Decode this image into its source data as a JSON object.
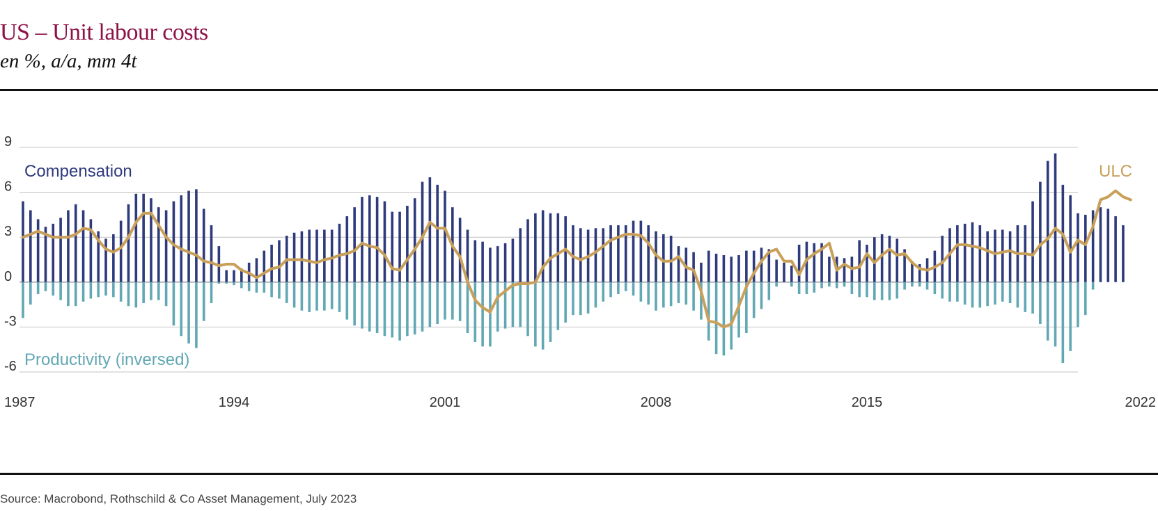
{
  "title": "US – Unit labour costs",
  "subtitle": "en %, a/a, mm 4t",
  "source": "Source: Macrobond, Rothschild & Co Asset Management, July 2023",
  "chart_data": {
    "type": "bar",
    "x_start": 1987,
    "x_step": 0.25,
    "x_ticks": [
      "1987",
      "1994",
      "2001",
      "2008",
      "2015",
      "2022"
    ],
    "ylim": [
      -6,
      9
    ],
    "y_ticks": [
      "9",
      "6",
      "3",
      "0",
      "-3",
      "-6"
    ],
    "grid": true,
    "colors": {
      "compensation": "#2e3a7c",
      "productivity": "#62a8b4",
      "ulc": "#c9a05a"
    },
    "series": [
      {
        "name": "Compensation",
        "type": "bar",
        "values": [
          5.4,
          4.8,
          4.2,
          3.7,
          3.9,
          4.3,
          4.8,
          5.2,
          4.8,
          4.2,
          3.4,
          2.9,
          3.2,
          4.1,
          5.2,
          5.9,
          5.9,
          5.6,
          5.0,
          4.8,
          5.4,
          5.8,
          6.1,
          6.2,
          4.9,
          3.8,
          2.4,
          0.8,
          0.8,
          0.9,
          1.3,
          1.6,
          2.1,
          2.5,
          2.8,
          3.1,
          3.3,
          3.4,
          3.5,
          3.5,
          3.5,
          3.5,
          3.9,
          4.4,
          5.0,
          5.7,
          5.8,
          5.7,
          5.4,
          4.7,
          4.7,
          5.1,
          5.6,
          6.7,
          7.0,
          6.5,
          6.1,
          5.0,
          4.3,
          3.5,
          2.8,
          2.7,
          2.3,
          2.4,
          2.6,
          2.9,
          3.6,
          4.2,
          4.6,
          4.8,
          4.6,
          4.6,
          4.4,
          3.8,
          3.6,
          3.5,
          3.6,
          3.6,
          3.8,
          3.8,
          3.8,
          4.1,
          4.1,
          3.8,
          3.4,
          3.2,
          3.1,
          2.4,
          2.3,
          2.0,
          1.3,
          2.1,
          1.9,
          1.8,
          1.7,
          1.8,
          2.1,
          2.1,
          2.3,
          2.2,
          1.5,
          1.3,
          1.1,
          2.5,
          2.7,
          2.6,
          2.6,
          1.7,
          1.7,
          1.6,
          1.7,
          2.8,
          2.5,
          3.0,
          3.2,
          3.1,
          2.9,
          2.2,
          1.4,
          1.2,
          1.6,
          2.1,
          3.1,
          3.6,
          3.8,
          3.9,
          4.0,
          3.8,
          3.4,
          3.5,
          3.5,
          3.4,
          3.8,
          3.8,
          5.4,
          6.7,
          8.1,
          8.6,
          6.5,
          5.8,
          4.6,
          4.5,
          4.8,
          5.0,
          4.9,
          4.4,
          3.8
        ],
        "label": "Compensation"
      },
      {
        "name": "Productivity (inversed)",
        "type": "bar",
        "values": [
          -2.4,
          -1.5,
          -0.8,
          -0.6,
          -0.9,
          -1.2,
          -1.6,
          -1.6,
          -1.3,
          -1.1,
          -1.0,
          -0.9,
          -1.0,
          -1.3,
          -1.6,
          -1.7,
          -1.4,
          -1.2,
          -1.2,
          -1.6,
          -2.9,
          -3.6,
          -4.1,
          -4.4,
          -2.6,
          -1.4,
          -0.1,
          -0.1,
          -0.2,
          -0.4,
          -0.6,
          -0.7,
          -0.7,
          -1.0,
          -1.1,
          -1.4,
          -1.7,
          -1.9,
          -2.0,
          -1.9,
          -1.9,
          -1.8,
          -2.0,
          -2.5,
          -2.9,
          -3.1,
          -3.3,
          -3.4,
          -3.6,
          -3.7,
          -3.9,
          -3.6,
          -3.5,
          -3.3,
          -3.0,
          -2.8,
          -2.5,
          -2.5,
          -2.6,
          -3.4,
          -4.0,
          -4.3,
          -4.3,
          -3.3,
          -3.1,
          -3.0,
          -3.0,
          -3.6,
          -4.3,
          -4.5,
          -4.0,
          -3.2,
          -2.7,
          -2.2,
          -2.2,
          -2.1,
          -1.7,
          -1.3,
          -1.0,
          -0.8,
          -0.6,
          -0.9,
          -1.3,
          -1.5,
          -1.9,
          -1.7,
          -1.6,
          -1.4,
          -1.5,
          -1.9,
          -2.5,
          -3.9,
          -4.8,
          -4.9,
          -4.5,
          -3.7,
          -3.4,
          -2.4,
          -1.8,
          -1.2,
          -0.3,
          -0.0,
          -0.3,
          -0.8,
          -0.8,
          -0.7,
          -0.4,
          -0.3,
          -0.4,
          -0.3,
          -0.8,
          -1.0,
          -1.0,
          -1.2,
          -1.2,
          -1.2,
          -1.1,
          -0.5,
          -0.3,
          -0.3,
          -0.5,
          -0.8,
          -1.1,
          -1.3,
          -1.3,
          -1.5,
          -1.7,
          -1.7,
          -1.6,
          -1.5,
          -1.3,
          -1.4,
          -1.7,
          -2.0,
          -2.1,
          -2.8,
          -3.9,
          -4.3,
          -5.4,
          -4.6,
          -3.0,
          -2.2,
          -0.5,
          0.0,
          0.0,
          0.0,
          0.0,
          0.0,
          0.0
        ],
        "label": "Productivity (inversed)"
      },
      {
        "name": "ULC",
        "type": "line",
        "values": [
          3.0,
          3.2,
          3.4,
          3.2,
          3.0,
          3.0,
          3.0,
          3.2,
          3.6,
          3.5,
          2.8,
          2.2,
          2.0,
          2.3,
          3.0,
          4.0,
          4.6,
          4.6,
          3.8,
          3.0,
          2.5,
          2.2,
          2.0,
          1.8,
          1.4,
          1.3,
          1.1,
          1.2,
          1.2,
          0.8,
          0.6,
          0.3,
          0.6,
          0.9,
          1.0,
          1.5,
          1.5,
          1.5,
          1.4,
          1.3,
          1.5,
          1.6,
          1.8,
          1.9,
          2.1,
          2.6,
          2.4,
          2.3,
          1.8,
          0.9,
          0.8,
          1.5,
          2.2,
          3.0,
          4.0,
          3.6,
          3.6,
          2.4,
          1.7,
          0.0,
          -1.2,
          -1.7,
          -2.0,
          -1.0,
          -0.6,
          -0.2,
          -0.1,
          -0.1,
          0.0,
          1.0,
          1.6,
          1.9,
          2.2,
          1.7,
          1.5,
          1.7,
          2.0,
          2.4,
          2.8,
          3.0,
          3.2,
          3.2,
          3.1,
          2.6,
          1.8,
          1.4,
          1.4,
          1.7,
          1.0,
          0.8,
          -0.6,
          -2.6,
          -2.7,
          -3.0,
          -2.8,
          -1.6,
          -0.3,
          0.6,
          1.4,
          2.0,
          2.2,
          1.4,
          1.4,
          0.5,
          1.5,
          1.9,
          2.2,
          2.6,
          0.8,
          1.2,
          0.9,
          1.0,
          1.9,
          1.3,
          1.8,
          2.2,
          1.8,
          1.9,
          1.3,
          0.9,
          0.8,
          1.0,
          1.3,
          1.9,
          2.5,
          2.5,
          2.4,
          2.3,
          2.1,
          1.9,
          2.0,
          2.1,
          1.9,
          1.9,
          1.8,
          2.5,
          2.9,
          3.6,
          3.2,
          2.0,
          2.8,
          2.5,
          3.7,
          5.5,
          5.7,
          6.1,
          5.7,
          5.5
        ],
        "label": "ULC"
      }
    ]
  }
}
